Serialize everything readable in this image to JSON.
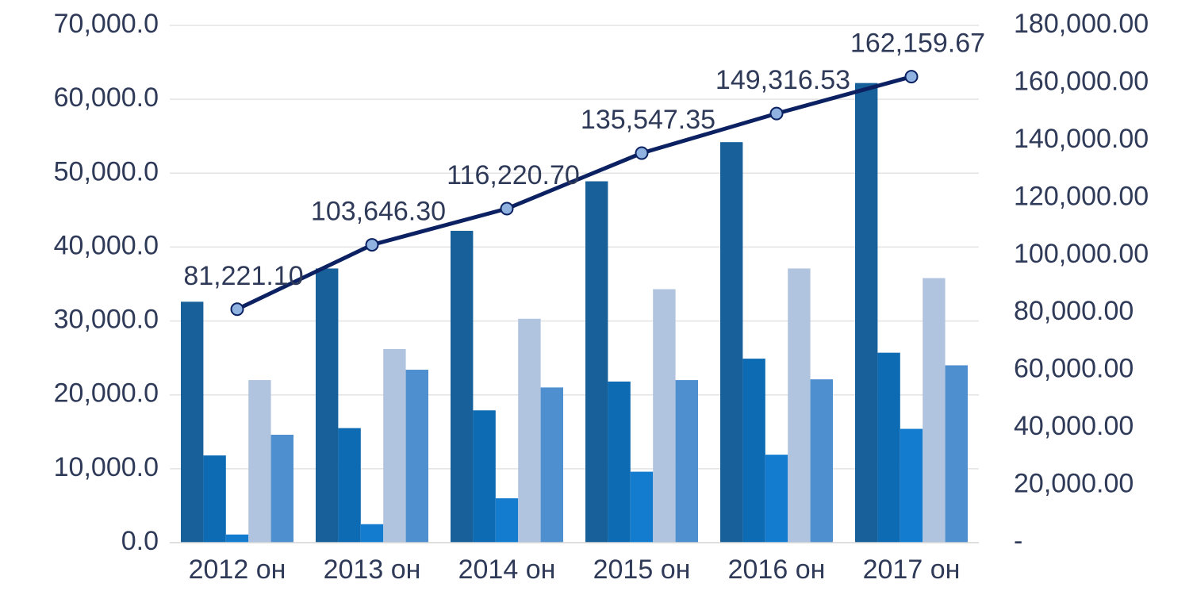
{
  "chart_data": {
    "type": "bar",
    "categories": [
      "2012 он",
      "2013 он",
      "2014 он",
      "2015 он",
      "2016 он",
      "2017 он"
    ],
    "series": [
      {
        "color": "#17609a",
        "values": [
          32600,
          37100,
          42200,
          48900,
          54200,
          62200
        ]
      },
      {
        "color": "#0d6bb3",
        "values": [
          11800,
          15500,
          17900,
          21800,
          24900,
          25700
        ]
      },
      {
        "color": "#137ccf",
        "values": [
          1100,
          2500,
          6000,
          9600,
          11900,
          15400
        ]
      },
      {
        "color": "#b0c3df",
        "values": [
          22000,
          26200,
          30300,
          34300,
          37100,
          35800
        ]
      },
      {
        "color": "#4e8fcf",
        "values": [
          14600,
          23400,
          21000,
          22000,
          22100,
          24000
        ]
      },
      {
        "type": "line",
        "axis": "y2",
        "color": "#0c2161",
        "marker_color": "#8fb2e1",
        "values": [
          81221.1,
          103646.3,
          116220.7,
          135547.35,
          149316.53,
          162159.67
        ],
        "value_labels": [
          "81,221.10",
          "103,646.30",
          "116,220.70",
          "135,547.35",
          "149,316.53",
          "162,159.67"
        ]
      }
    ],
    "ylim": [
      0,
      70000
    ],
    "yticks": [
      {
        "value": 0,
        "label": "0.0"
      },
      {
        "value": 10000,
        "label": "10,000.0"
      },
      {
        "value": 20000,
        "label": "20,000.0"
      },
      {
        "value": 30000,
        "label": "30,000.0"
      },
      {
        "value": 40000,
        "label": "40,000.0"
      },
      {
        "value": 50000,
        "label": "50,000.0"
      },
      {
        "value": 60000,
        "label": "60,000.0"
      },
      {
        "value": 70000,
        "label": "70,000.0"
      }
    ],
    "y2lim": [
      0,
      180000
    ],
    "y2ticks": [
      {
        "value": 0,
        "label": "-"
      },
      {
        "value": 20000,
        "label": "20,000.00"
      },
      {
        "value": 40000,
        "label": "40,000.00"
      },
      {
        "value": 60000,
        "label": "60,000.00"
      },
      {
        "value": 80000,
        "label": "80,000.00"
      },
      {
        "value": 100000,
        "label": "100,000.00"
      },
      {
        "value": 120000,
        "label": "120,000.00"
      },
      {
        "value": 140000,
        "label": "140,000.00"
      },
      {
        "value": 160000,
        "label": "160,000.00"
      },
      {
        "value": 180000,
        "label": "180,000.00"
      }
    ],
    "grid": true
  }
}
